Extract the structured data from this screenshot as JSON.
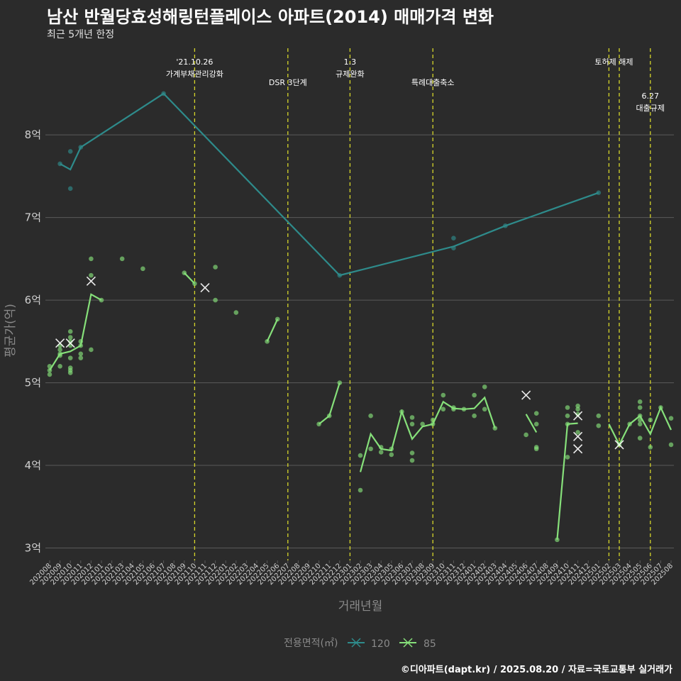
{
  "title": "남산 반월당효성해링턴플레이스 아파트(2014) 매매가격 변화",
  "subtitle": "최근 5개년 한정",
  "caption": "©디아파트(dapt.kr) / 2025.08.20 / 자료=국토교통부 실거래가",
  "colors": {
    "background": "#2b2b2b",
    "grid": "#5a5a5a",
    "s120": "#2e8b8b",
    "s85": "#86e07a",
    "event": "#d6d62a",
    "axis_text": "#d0d0d0",
    "muted": "#8a8a8a"
  },
  "chart_data": {
    "type": "line",
    "xlabel": "거래년월",
    "ylabel": "평균가(억)",
    "ylim": [
      2.85,
      9.1
    ],
    "yticks": [
      3,
      4,
      5,
      6,
      7,
      8
    ],
    "ytick_labels": [
      "3억",
      "4억",
      "5억",
      "6억",
      "7억",
      "8억"
    ],
    "categories": [
      "202008",
      "202009",
      "202010",
      "202011",
      "202012",
      "202101",
      "202102",
      "202103",
      "202104",
      "202105",
      "202106",
      "202107",
      "202108",
      "202109",
      "202110",
      "202111",
      "202112",
      "202201",
      "202202",
      "202203",
      "202204",
      "202205",
      "202206",
      "202207",
      "202208",
      "202209",
      "202210",
      "202211",
      "202212",
      "202301",
      "202302",
      "202303",
      "202304",
      "202305",
      "202306",
      "202307",
      "202308",
      "202309",
      "202310",
      "202311",
      "202312",
      "202401",
      "202402",
      "202403",
      "202404",
      "202405",
      "202406",
      "202407",
      "202408",
      "202409",
      "202410",
      "202411",
      "202412",
      "202501",
      "202502",
      "202503",
      "202504",
      "202505",
      "202506",
      "202507",
      "202508"
    ],
    "legend": {
      "title": "전용면적(㎡)",
      "items": [
        "120",
        "85"
      ],
      "placement": "bottom"
    },
    "series": [
      {
        "name": "120",
        "line": [
          [
            "202009",
            7.65
          ],
          [
            "202010",
            7.58
          ],
          [
            "202011",
            7.85
          ],
          [
            "202107",
            8.5
          ],
          [
            "202212",
            6.3
          ],
          [
            "202311",
            6.65
          ],
          [
            "202404",
            6.9
          ],
          [
            "202501",
            7.3
          ]
        ],
        "points": [
          [
            "202009",
            7.65
          ],
          [
            "202010",
            7.8
          ],
          [
            "202010",
            7.35
          ],
          [
            "202011",
            7.85
          ],
          [
            "202107",
            8.5
          ],
          [
            "202212",
            6.3
          ],
          [
            "202311",
            6.75
          ],
          [
            "202311",
            6.63
          ],
          [
            "202404",
            6.9
          ],
          [
            "202501",
            7.3
          ]
        ],
        "highlights": []
      },
      {
        "name": "85",
        "segments": [
          [
            [
              "202008",
              5.15
            ],
            [
              "202009",
              5.35
            ],
            [
              "202010",
              5.38
            ],
            [
              "202011",
              5.45
            ],
            [
              "202012",
              6.07
            ],
            [
              "202101",
              6.0
            ]
          ],
          [
            [
              "202109",
              6.33
            ],
            [
              "202110",
              6.2
            ]
          ],
          [
            [
              "202205",
              5.5
            ],
            [
              "202206",
              5.77
            ]
          ],
          [
            [
              "202210",
              4.5
            ],
            [
              "202211",
              4.6
            ],
            [
              "202212",
              5.0
            ]
          ],
          [
            [
              "202302",
              3.92
            ],
            [
              "202303",
              4.38
            ],
            [
              "202304",
              4.2
            ],
            [
              "202305",
              4.18
            ],
            [
              "202306",
              4.65
            ],
            [
              "202307",
              4.32
            ],
            [
              "202308",
              4.47
            ],
            [
              "202309",
              4.5
            ],
            [
              "202310",
              4.77
            ],
            [
              "202311",
              4.69
            ],
            [
              "202312",
              4.68
            ],
            [
              "202401",
              4.69
            ],
            [
              "202402",
              4.82
            ],
            [
              "202403",
              4.45
            ]
          ],
          [
            [
              "202406",
              4.62
            ],
            [
              "202407",
              4.4
            ]
          ],
          [
            [
              "202409",
              3.1
            ],
            [
              "202410",
              4.5
            ],
            [
              "202411",
              4.51
            ]
          ],
          [
            [
              "202502",
              4.5
            ],
            [
              "202503",
              4.25
            ],
            [
              "202504",
              4.5
            ],
            [
              "202505",
              4.6
            ],
            [
              "202506",
              4.38
            ],
            [
              "202507",
              4.7
            ],
            [
              "202508",
              4.43
            ]
          ]
        ],
        "points": [
          [
            "202008",
            5.1
          ],
          [
            "202008",
            5.2
          ],
          [
            "202008",
            5.15
          ],
          [
            "202009",
            5.2
          ],
          [
            "202009",
            5.4
          ],
          [
            "202009",
            5.45
          ],
          [
            "202009",
            5.35
          ],
          [
            "202009",
            5.33
          ],
          [
            "202010",
            5.15
          ],
          [
            "202010",
            5.12
          ],
          [
            "202010",
            5.18
          ],
          [
            "202010",
            5.3
          ],
          [
            "202010",
            5.45
          ],
          [
            "202010",
            5.5
          ],
          [
            "202010",
            5.55
          ],
          [
            "202010",
            5.62
          ],
          [
            "202011",
            5.3
          ],
          [
            "202011",
            5.35
          ],
          [
            "202011",
            5.45
          ],
          [
            "202011",
            5.5
          ],
          [
            "202012",
            5.4
          ],
          [
            "202012",
            6.5
          ],
          [
            "202012",
            6.3
          ],
          [
            "202101",
            6.0
          ],
          [
            "202103",
            6.5
          ],
          [
            "202105",
            6.38
          ],
          [
            "202109",
            6.33
          ],
          [
            "202110",
            6.2
          ],
          [
            "202112",
            6.4
          ],
          [
            "202112",
            6.0
          ],
          [
            "202202",
            5.85
          ],
          [
            "202205",
            5.5
          ],
          [
            "202206",
            5.77
          ],
          [
            "202210",
            4.5
          ],
          [
            "202211",
            4.6
          ],
          [
            "202212",
            5.0
          ],
          [
            "202302",
            4.12
          ],
          [
            "202302",
            3.7
          ],
          [
            "202303",
            4.6
          ],
          [
            "202303",
            4.2
          ],
          [
            "202304",
            4.22
          ],
          [
            "202304",
            4.16
          ],
          [
            "202305",
            4.13
          ],
          [
            "202305",
            4.2
          ],
          [
            "202306",
            4.65
          ],
          [
            "202307",
            4.58
          ],
          [
            "202307",
            4.15
          ],
          [
            "202307",
            4.06
          ],
          [
            "202307",
            4.5
          ],
          [
            "202308",
            4.5
          ],
          [
            "202309",
            4.55
          ],
          [
            "202309",
            4.5
          ],
          [
            "202310",
            4.85
          ],
          [
            "202310",
            4.68
          ],
          [
            "202311",
            4.7
          ],
          [
            "202311",
            4.68
          ],
          [
            "202312",
            4.68
          ],
          [
            "202401",
            4.85
          ],
          [
            "202401",
            4.6
          ],
          [
            "202402",
            4.95
          ],
          [
            "202402",
            4.68
          ],
          [
            "202403",
            4.45
          ],
          [
            "202406",
            4.37
          ],
          [
            "202407",
            4.63
          ],
          [
            "202407",
            4.5
          ],
          [
            "202407",
            4.22
          ],
          [
            "202407",
            4.2
          ],
          [
            "202409",
            3.1
          ],
          [
            "202410",
            4.6
          ],
          [
            "202410",
            4.7
          ],
          [
            "202410",
            4.5
          ],
          [
            "202410",
            4.1
          ],
          [
            "202411",
            4.72
          ],
          [
            "202411",
            4.68
          ],
          [
            "202411",
            4.4
          ],
          [
            "202411",
            4.62
          ],
          [
            "202501",
            4.6
          ],
          [
            "202501",
            4.48
          ],
          [
            "202503",
            4.25
          ],
          [
            "202504",
            4.5
          ],
          [
            "202505",
            4.77
          ],
          [
            "202505",
            4.7
          ],
          [
            "202505",
            4.6
          ],
          [
            "202505",
            4.55
          ],
          [
            "202505",
            4.5
          ],
          [
            "202505",
            4.33
          ],
          [
            "202506",
            4.55
          ],
          [
            "202506",
            4.22
          ],
          [
            "202507",
            4.7
          ],
          [
            "202508",
            4.57
          ],
          [
            "202508",
            4.25
          ]
        ],
        "highlights": [
          [
            "202009",
            5.48
          ],
          [
            "202010",
            5.48
          ],
          [
            "202012",
            6.23
          ],
          [
            "202111",
            6.15
          ],
          [
            "202406",
            4.85
          ],
          [
            "202411",
            4.6
          ],
          [
            "202411",
            4.35
          ],
          [
            "202411",
            4.2
          ],
          [
            "202503",
            4.25
          ]
        ]
      }
    ],
    "events": [
      {
        "x": "202110",
        "labels": [
          "'21.10.26",
          "가계부채관리강화"
        ],
        "row": 0
      },
      {
        "x": "202207",
        "labels": [
          "DSR 3단계"
        ],
        "row": 1
      },
      {
        "x": "202301",
        "labels": [
          "1.3",
          "규제완화"
        ],
        "row": 0
      },
      {
        "x": "202309",
        "labels": [
          "특례대출축소"
        ],
        "row": 1
      },
      {
        "x": "202502",
        "labels": [
          "토허제 해제"
        ],
        "row": 0,
        "anchor": "mid"
      },
      {
        "x": "202503",
        "labels": [],
        "row": 0
      },
      {
        "x": "202506",
        "labels": [
          "6.27",
          "대출규제"
        ],
        "row": 2
      }
    ]
  }
}
